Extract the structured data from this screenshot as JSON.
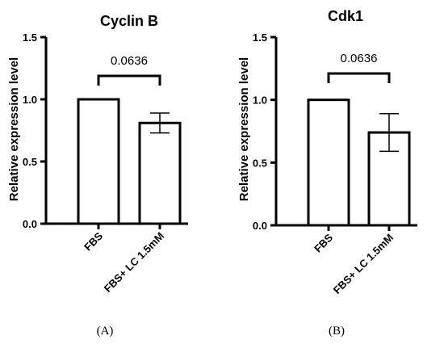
{
  "chart_data": [
    {
      "type": "bar",
      "panel_label": "(A)",
      "title": "Cyclin B",
      "ylabel": "Relative expression level",
      "xlabel": "",
      "ylim": [
        0,
        1.5
      ],
      "yticks": [
        "0.0",
        "0.5",
        "1.0",
        "1.5"
      ],
      "categories": [
        "FBS",
        "FBS+ LC 1.5mM"
      ],
      "values": [
        1.0,
        0.81
      ],
      "errors": [
        0,
        0.08
      ],
      "pvalue": "0.0636"
    },
    {
      "type": "bar",
      "panel_label": "(B)",
      "title": "Cdk1",
      "ylabel": "Relative expression level",
      "xlabel": "",
      "ylim": [
        0,
        1.5
      ],
      "yticks": [
        "0.0",
        "0.5",
        "1.0",
        "1.5"
      ],
      "categories": [
        "FBS",
        "FBS+ LC 1.5mM"
      ],
      "values": [
        1.0,
        0.74
      ],
      "errors": [
        0,
        0.15
      ],
      "pvalue": "0.0636"
    }
  ]
}
